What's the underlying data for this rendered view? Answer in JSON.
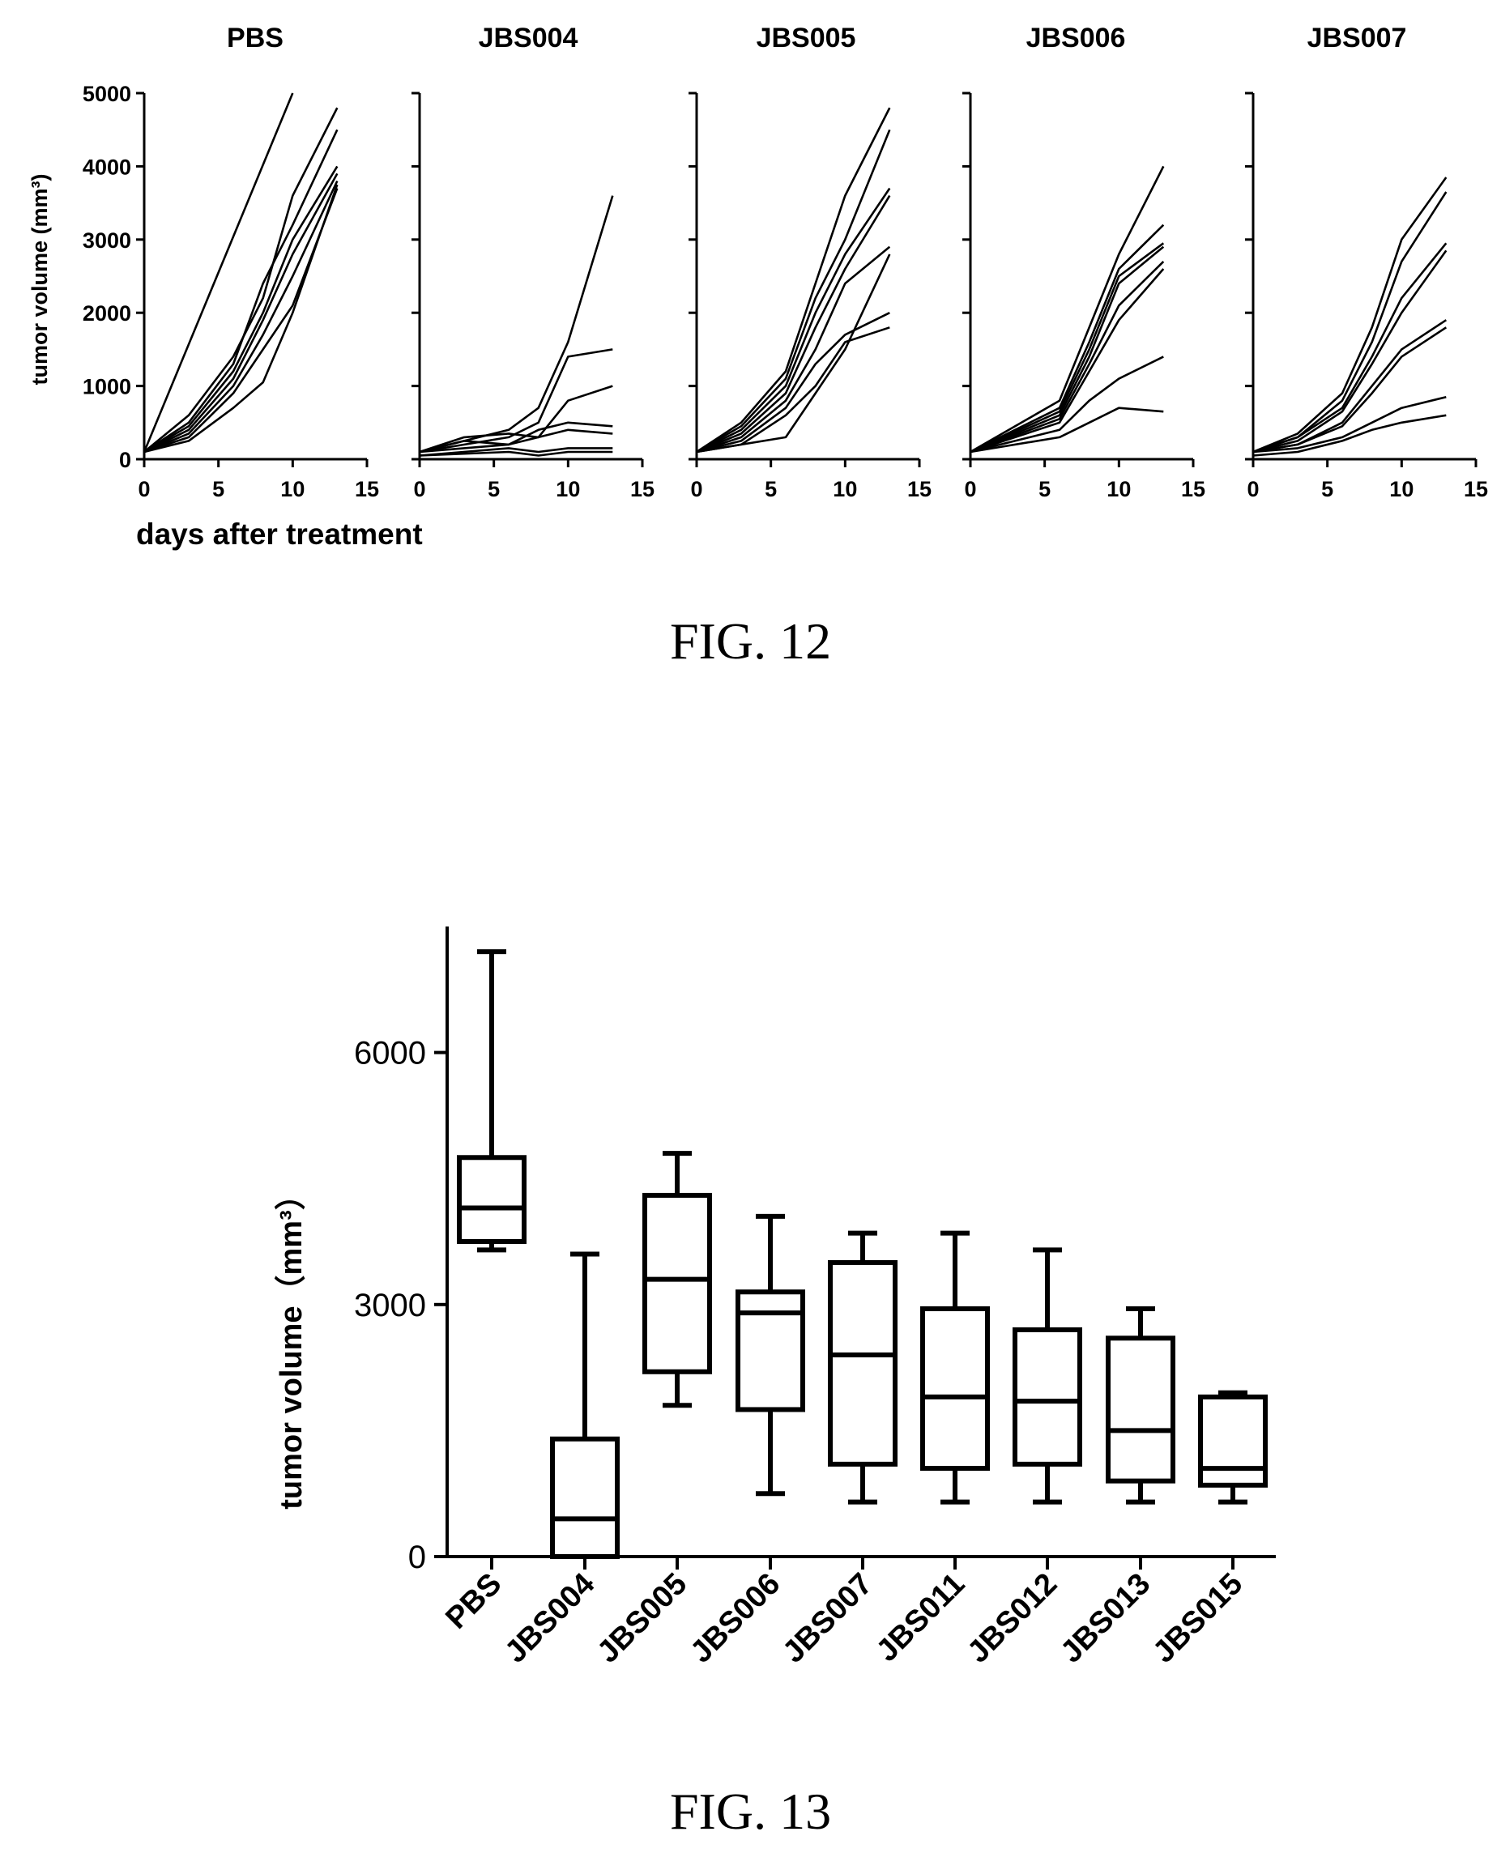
{
  "figures": {
    "fig12_caption": "FIG. 12",
    "fig13_caption": "FIG. 13"
  },
  "chart_data": [
    {
      "type": "line",
      "panels": [
        "PBS",
        "JBS004",
        "JBS005",
        "JBS006",
        "JBS007"
      ],
      "ylabel": "tumor volume (mm³)",
      "xlabel": "days after treatment",
      "xlim": [
        0,
        15
      ],
      "ylim": [
        0,
        5000
      ],
      "xticks": [
        0,
        5,
        10,
        15
      ],
      "yticks": [
        0,
        1000,
        2000,
        3000,
        4000,
        5000
      ],
      "series": [
        {
          "panel": "PBS",
          "lines": [
            [
              [
                0,
                100
              ],
              [
                10,
                5000
              ]
            ],
            [
              [
                0,
                100
              ],
              [
                3,
                600
              ],
              [
                6,
                1400
              ],
              [
                8,
                2200
              ],
              [
                10,
                3600
              ],
              [
                13,
                4800
              ]
            ],
            [
              [
                0,
                100
              ],
              [
                3,
                500
              ],
              [
                6,
                1300
              ],
              [
                8,
                2400
              ],
              [
                10,
                3200
              ],
              [
                13,
                4500
              ]
            ],
            [
              [
                0,
                100
              ],
              [
                3,
                450
              ],
              [
                6,
                1200
              ],
              [
                8,
                2000
              ],
              [
                10,
                3000
              ],
              [
                13,
                4000
              ]
            ],
            [
              [
                0,
                100
              ],
              [
                3,
                400
              ],
              [
                6,
                1100
              ],
              [
                8,
                1900
              ],
              [
                10,
                2800
              ],
              [
                13,
                3900
              ]
            ],
            [
              [
                0,
                100
              ],
              [
                3,
                350
              ],
              [
                6,
                1000
              ],
              [
                8,
                1700
              ],
              [
                10,
                2500
              ],
              [
                13,
                3800
              ]
            ],
            [
              [
                0,
                100
              ],
              [
                3,
                300
              ],
              [
                6,
                900
              ],
              [
                8,
                1500
              ],
              [
                10,
                2100
              ],
              [
                13,
                3700
              ]
            ],
            [
              [
                0,
                100
              ],
              [
                3,
                250
              ],
              [
                6,
                700
              ],
              [
                8,
                1050
              ],
              [
                10,
                2000
              ],
              [
                13,
                3750
              ]
            ]
          ]
        },
        {
          "panel": "JBS004",
          "lines": [
            [
              [
                0,
                100
              ],
              [
                6,
                400
              ],
              [
                8,
                700
              ],
              [
                10,
                1600
              ],
              [
                13,
                3600
              ]
            ],
            [
              [
                0,
                100
              ],
              [
                6,
                300
              ],
              [
                8,
                500
              ],
              [
                10,
                1400
              ],
              [
                13,
                1500
              ]
            ],
            [
              [
                0,
                100
              ],
              [
                3,
                300
              ],
              [
                6,
                350
              ],
              [
                8,
                300
              ],
              [
                10,
                800
              ],
              [
                13,
                1000
              ]
            ],
            [
              [
                0,
                100
              ],
              [
                3,
                250
              ],
              [
                6,
                200
              ],
              [
                8,
                400
              ],
              [
                10,
                500
              ],
              [
                13,
                450
              ]
            ],
            [
              [
                0,
                100
              ],
              [
                3,
                150
              ],
              [
                6,
                200
              ],
              [
                8,
                300
              ],
              [
                10,
                400
              ],
              [
                13,
                350
              ]
            ],
            [
              [
                0,
                50
              ],
              [
                6,
                150
              ],
              [
                8,
                100
              ],
              [
                10,
                150
              ],
              [
                13,
                150
              ]
            ],
            [
              [
                0,
                50
              ],
              [
                6,
                100
              ],
              [
                8,
                50
              ],
              [
                10,
                100
              ],
              [
                13,
                100
              ]
            ]
          ]
        },
        {
          "panel": "JBS005",
          "lines": [
            [
              [
                0,
                100
              ],
              [
                3,
                500
              ],
              [
                6,
                1200
              ],
              [
                8,
                2400
              ],
              [
                10,
                3600
              ],
              [
                13,
                4800
              ]
            ],
            [
              [
                0,
                100
              ],
              [
                3,
                450
              ],
              [
                6,
                1100
              ],
              [
                8,
                2200
              ],
              [
                10,
                3000
              ],
              [
                13,
                4500
              ]
            ],
            [
              [
                0,
                100
              ],
              [
                3,
                400
              ],
              [
                6,
                1000
              ],
              [
                8,
                2000
              ],
              [
                10,
                2800
              ],
              [
                13,
                3700
              ]
            ],
            [
              [
                0,
                100
              ],
              [
                3,
                350
              ],
              [
                6,
                900
              ],
              [
                8,
                1800
              ],
              [
                10,
                2600
              ],
              [
                13,
                3600
              ]
            ],
            [
              [
                0,
                100
              ],
              [
                3,
                300
              ],
              [
                6,
                800
              ],
              [
                8,
                1500
              ],
              [
                10,
                2400
              ],
              [
                13,
                2900
              ]
            ],
            [
              [
                0,
                100
              ],
              [
                3,
                250
              ],
              [
                6,
                700
              ],
              [
                8,
                1300
              ],
              [
                10,
                1700
              ],
              [
                13,
                2000
              ]
            ],
            [
              [
                0,
                100
              ],
              [
                3,
                200
              ],
              [
                6,
                600
              ],
              [
                8,
                1000
              ],
              [
                10,
                1600
              ],
              [
                13,
                1800
              ]
            ],
            [
              [
                0,
                100
              ],
              [
                6,
                300
              ],
              [
                8,
                900
              ],
              [
                10,
                1500
              ],
              [
                13,
                2800
              ]
            ]
          ]
        },
        {
          "panel": "JBS006",
          "lines": [
            [
              [
                0,
                100
              ],
              [
                6,
                800
              ],
              [
                8,
                1800
              ],
              [
                10,
                2800
              ],
              [
                13,
                4000
              ]
            ],
            [
              [
                0,
                100
              ],
              [
                6,
                700
              ],
              [
                8,
                1600
              ],
              [
                10,
                2600
              ],
              [
                13,
                3200
              ]
            ],
            [
              [
                0,
                100
              ],
              [
                6,
                650
              ],
              [
                8,
                1500
              ],
              [
                10,
                2500
              ],
              [
                13,
                2950
              ]
            ],
            [
              [
                0,
                100
              ],
              [
                6,
                600
              ],
              [
                8,
                1400
              ],
              [
                10,
                2400
              ],
              [
                13,
                2900
              ]
            ],
            [
              [
                0,
                100
              ],
              [
                6,
                550
              ],
              [
                8,
                1300
              ],
              [
                10,
                2100
              ],
              [
                13,
                2700
              ]
            ],
            [
              [
                0,
                100
              ],
              [
                6,
                500
              ],
              [
                8,
                1200
              ],
              [
                10,
                1900
              ],
              [
                13,
                2600
              ]
            ],
            [
              [
                0,
                100
              ],
              [
                6,
                400
              ],
              [
                8,
                800
              ],
              [
                10,
                1100
              ],
              [
                13,
                1400
              ]
            ],
            [
              [
                0,
                100
              ],
              [
                6,
                300
              ],
              [
                8,
                500
              ],
              [
                10,
                700
              ],
              [
                13,
                650
              ]
            ]
          ]
        },
        {
          "panel": "JBS007",
          "lines": [
            [
              [
                0,
                100
              ],
              [
                3,
                350
              ],
              [
                6,
                900
              ],
              [
                8,
                1800
              ],
              [
                10,
                3000
              ],
              [
                13,
                3850
              ]
            ],
            [
              [
                0,
                100
              ],
              [
                3,
                300
              ],
              [
                6,
                800
              ],
              [
                8,
                1600
              ],
              [
                10,
                2700
              ],
              [
                13,
                3650
              ]
            ],
            [
              [
                0,
                100
              ],
              [
                3,
                300
              ],
              [
                6,
                700
              ],
              [
                8,
                1400
              ],
              [
                10,
                2200
              ],
              [
                13,
                2950
              ]
            ],
            [
              [
                0,
                100
              ],
              [
                3,
                250
              ],
              [
                6,
                650
              ],
              [
                8,
                1300
              ],
              [
                10,
                2000
              ],
              [
                13,
                2850
              ]
            ],
            [
              [
                0,
                100
              ],
              [
                3,
                200
              ],
              [
                6,
                500
              ],
              [
                8,
                1000
              ],
              [
                10,
                1500
              ],
              [
                13,
                1900
              ]
            ],
            [
              [
                0,
                100
              ],
              [
                3,
                200
              ],
              [
                6,
                450
              ],
              [
                8,
                900
              ],
              [
                10,
                1400
              ],
              [
                13,
                1800
              ]
            ],
            [
              [
                0,
                100
              ],
              [
                3,
                150
              ],
              [
                6,
                300
              ],
              [
                8,
                500
              ],
              [
                10,
                700
              ],
              [
                13,
                850
              ]
            ],
            [
              [
                0,
                50
              ],
              [
                3,
                100
              ],
              [
                6,
                250
              ],
              [
                8,
                400
              ],
              [
                10,
                500
              ],
              [
                13,
                600
              ]
            ]
          ]
        }
      ]
    },
    {
      "type": "box",
      "ylabel": "tumor volume（mm³）",
      "ylim": [
        0,
        7500
      ],
      "yticks": [
        0,
        3000,
        6000
      ],
      "categories": [
        "PBS",
        "JBS004",
        "JBS005",
        "JBS006",
        "JBS007",
        "JBS011",
        "JBS012",
        "JBS013",
        "JBS015"
      ],
      "boxes": [
        {
          "min": 3650,
          "q1": 3750,
          "median": 4150,
          "q3": 4750,
          "max": 7200
        },
        {
          "min": 0,
          "q1": 0,
          "median": 450,
          "q3": 1400,
          "max": 3600
        },
        {
          "min": 1800,
          "q1": 2200,
          "median": 3300,
          "q3": 4300,
          "max": 4800
        },
        {
          "min": 750,
          "q1": 1750,
          "median": 2900,
          "q3": 3150,
          "max": 4050
        },
        {
          "min": 650,
          "q1": 1100,
          "median": 2400,
          "q3": 3500,
          "max": 3850
        },
        {
          "min": 650,
          "q1": 1050,
          "median": 1900,
          "q3": 2950,
          "max": 3850
        },
        {
          "min": 650,
          "q1": 1100,
          "median": 1850,
          "q3": 2700,
          "max": 3650
        },
        {
          "min": 650,
          "q1": 900,
          "median": 1500,
          "q3": 2600,
          "max": 2950
        },
        {
          "min": 650,
          "q1": 850,
          "median": 1050,
          "q3": 1900,
          "max": 1950
        }
      ]
    }
  ]
}
